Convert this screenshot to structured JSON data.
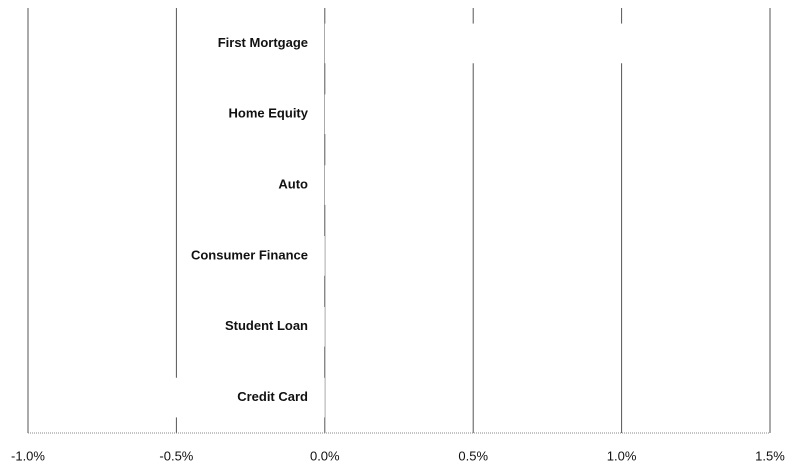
{
  "chart_data": {
    "type": "hbar",
    "categories": [
      "First Mortgage",
      "Home Equity",
      "Auto",
      "Consumer Finance",
      "Student Loan",
      "Credit Card"
    ],
    "values": [
      1.1,
      0.3,
      0.2,
      -0.3,
      -0.4,
      -0.6
    ],
    "color": "#ffffff",
    "xlim": [
      -1.0,
      1.5
    ],
    "xticks": [
      {
        "value": -1.0,
        "label": "-1.0%"
      },
      {
        "value": -0.5,
        "label": "-0.5%"
      },
      {
        "value": 0.0,
        "label": "0.0%"
      },
      {
        "value": 0.5,
        "label": "0.5%"
      },
      {
        "value": 1.0,
        "label": "1.0%"
      },
      {
        "value": 1.5,
        "label": "1.5%"
      }
    ],
    "grid": true
  }
}
